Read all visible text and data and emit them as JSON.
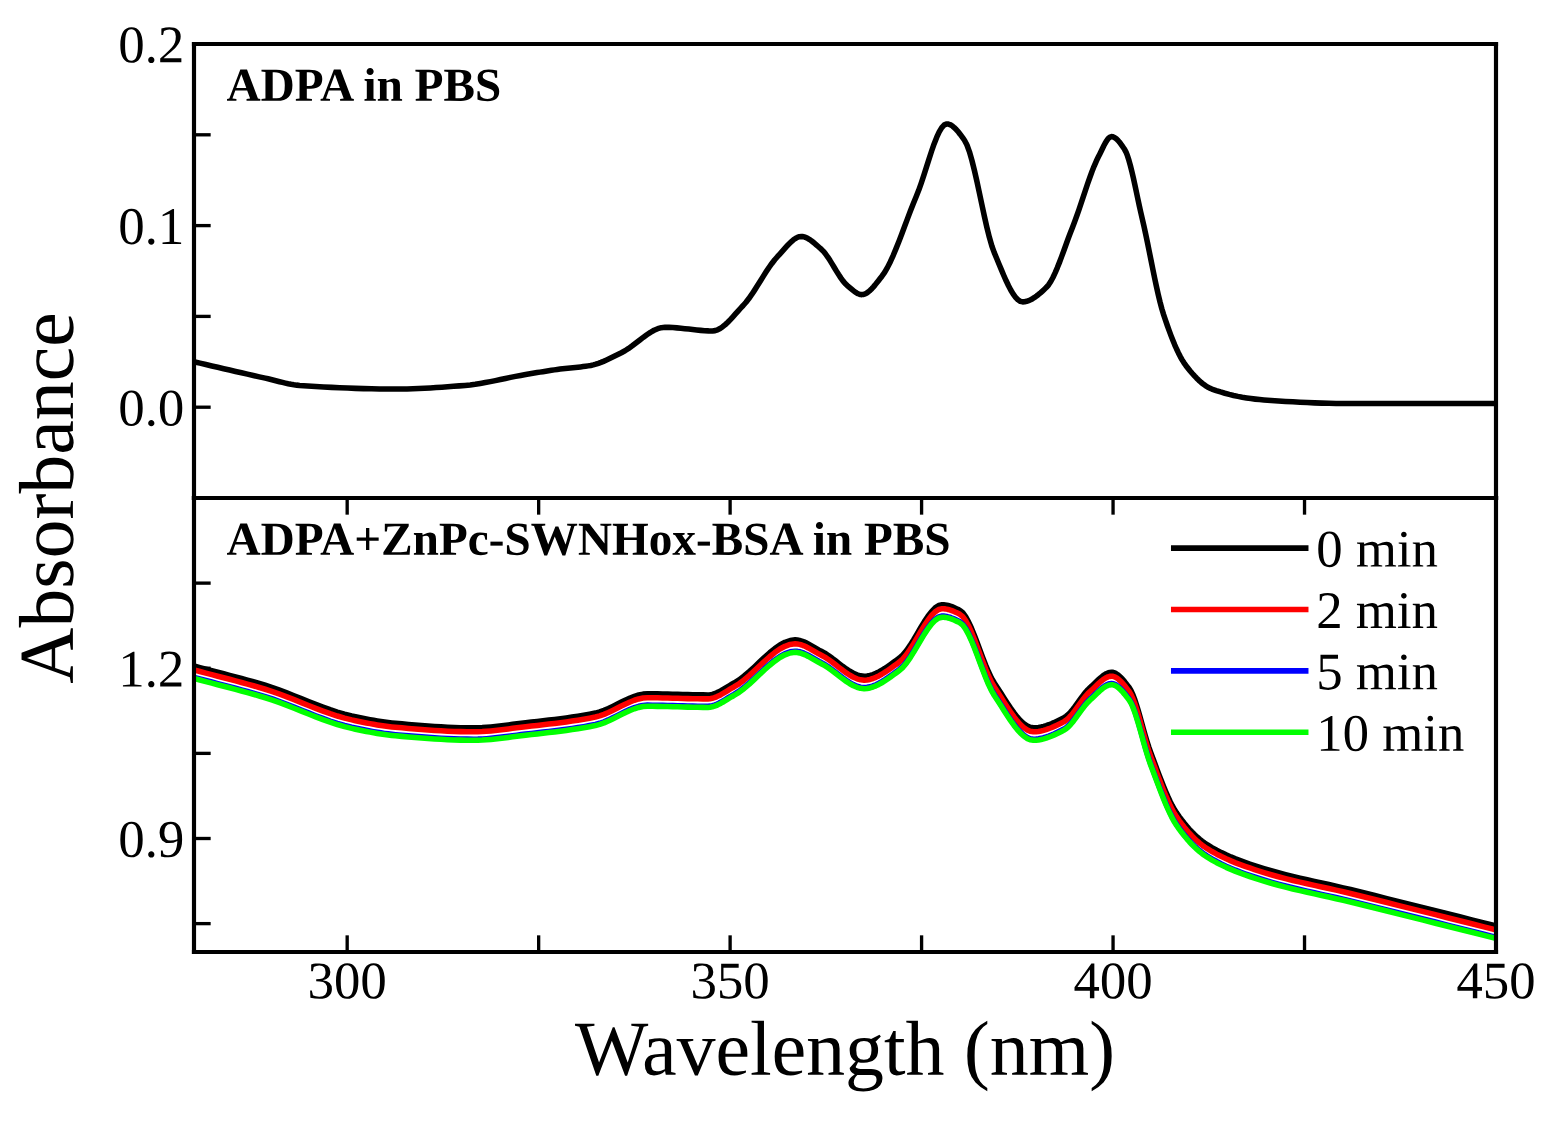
{
  "chart_data": [
    {
      "type": "line",
      "ylabel": "Absorbance",
      "annotations": [
        "ADPA in PBS"
      ],
      "xlim": [
        280,
        450
      ],
      "ylim": [
        -0.05,
        0.2
      ],
      "yticks": [
        {
          "value": 0,
          "label": "0.0"
        },
        {
          "value": 0.05,
          "label": null
        },
        {
          "value": 0.1,
          "label": "0.1"
        },
        {
          "value": 0.15,
          "label": null
        },
        {
          "value": 0.2,
          "label": "0.2"
        }
      ],
      "tick_labels": "y",
      "legend": false,
      "grid": false,
      "series": [
        {
          "color": "#000000",
          "x": [
            280,
            289.3,
            293.8,
            306.3,
            315.4,
            323.3,
            327.8,
            331.8,
            335.8,
            341.5,
            347.7,
            351.7,
            356.2,
            359.3,
            361.9,
            365.3,
            367.2,
            369.8,
            374.3,
            378.3,
            380.6,
            384.5,
            388.2,
            391.3,
            394.7,
            398.1,
            399.8,
            401.5,
            403.8,
            406.6,
            409.5,
            412.9,
            419.7,
            431,
            450
          ],
          "values": [
            0.025,
            0.016,
            0.012,
            0.01,
            0.012,
            0.018,
            0.021,
            0.023,
            0.03,
            0.044,
            0.042,
            0.056,
            0.083,
            0.094,
            0.087,
            0.067,
            0.062,
            0.072,
            0.116,
            0.156,
            0.147,
            0.085,
            0.058,
            0.066,
            0.099,
            0.138,
            0.149,
            0.142,
            0.104,
            0.051,
            0.023,
            0.01,
            0.004,
            0.002,
            0.002
          ]
        }
      ]
    },
    {
      "type": "line",
      "xlabel": "Wavelength (nm)",
      "annotations": [
        "ADPA+ZnPc-SWNHox-BSA in PBS"
      ],
      "xlim": [
        280,
        450
      ],
      "xticks": [
        300,
        {
          "value": 325,
          "label": null
        },
        350,
        {
          "value": 375,
          "label": null
        },
        400,
        {
          "value": 425,
          "label": null
        },
        450
      ],
      "ylim": [
        0.7,
        1.5
      ],
      "yticks": [
        {
          "value": 0.75,
          "label": null
        },
        0.9,
        {
          "value": 1.05,
          "label": null
        },
        1.2,
        {
          "value": 1.35,
          "label": null
        }
      ],
      "legend": "top right",
      "grid": false,
      "x": [
        280,
        289.3,
        300.6,
        306.3,
        316.5,
        323.3,
        332.4,
        339.2,
        347.1,
        350.5,
        358.5,
        361.9,
        367.5,
        372.1,
        377.7,
        380,
        384.5,
        389.6,
        393.6,
        397,
        399.8,
        402.1,
        404.9,
        408.3,
        412.3,
        419.7,
        431,
        450
      ],
      "series": [
        {
          "name": "0 min",
          "color": "#000000",
          "values": [
            1.204,
            1.17,
            1.116,
            1.103,
            1.095,
            1.104,
            1.121,
            1.155,
            1.153,
            1.174,
            1.25,
            1.23,
            1.186,
            1.218,
            1.312,
            1.302,
            1.174,
            1.095,
            1.113,
            1.166,
            1.193,
            1.166,
            1.052,
            0.945,
            0.889,
            0.847,
            0.81,
            0.746
          ]
        },
        {
          "name": "2 min",
          "color": "#ff0000",
          "values": [
            1.197,
            1.163,
            1.109,
            1.096,
            1.088,
            1.097,
            1.114,
            1.148,
            1.146,
            1.167,
            1.243,
            1.223,
            1.179,
            1.211,
            1.305,
            1.295,
            1.167,
            1.088,
            1.106,
            1.159,
            1.186,
            1.159,
            1.045,
            0.938,
            0.882,
            0.84,
            0.803,
            0.739
          ]
        },
        {
          "name": "5 min",
          "color": "#0000ff",
          "values": [
            1.184,
            1.15,
            1.096,
            1.083,
            1.075,
            1.084,
            1.101,
            1.135,
            1.133,
            1.154,
            1.23,
            1.21,
            1.166,
            1.198,
            1.292,
            1.282,
            1.154,
            1.075,
            1.093,
            1.146,
            1.173,
            1.146,
            1.032,
            0.925,
            0.869,
            0.827,
            0.79,
            0.726
          ]
        },
        {
          "name": "10 min",
          "color": "#00ff00",
          "values": [
            1.182,
            1.148,
            1.094,
            1.081,
            1.073,
            1.082,
            1.099,
            1.133,
            1.131,
            1.152,
            1.228,
            1.208,
            1.164,
            1.196,
            1.29,
            1.28,
            1.152,
            1.073,
            1.091,
            1.144,
            1.171,
            1.144,
            1.03,
            0.923,
            0.867,
            0.825,
            0.788,
            0.724
          ]
        }
      ]
    }
  ]
}
